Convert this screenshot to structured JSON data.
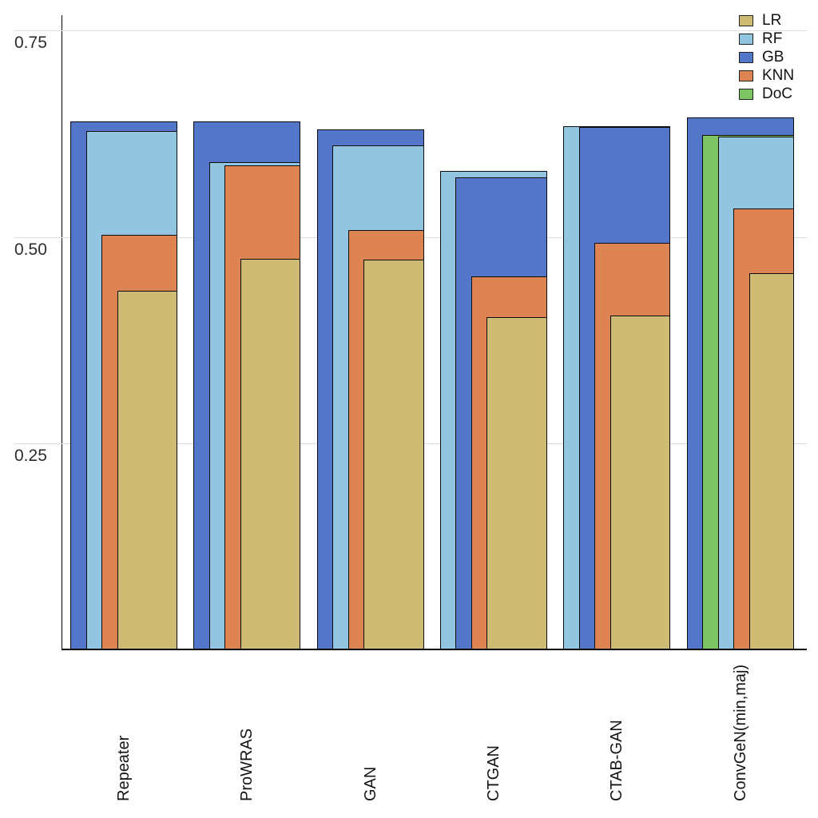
{
  "chart_data": {
    "type": "bar",
    "variant": "nested-overlay-bars",
    "title": "",
    "xlabel": "",
    "ylabel": "",
    "categories": [
      "Repeater",
      "ProWRAS",
      "GAN",
      "CTGAN",
      "CTAB-GAN",
      "ConvGeN(min,maj)"
    ],
    "series": [
      {
        "name": "LR",
        "color": "#CEBB74",
        "values": [
          0.435,
          0.473,
          0.472,
          0.403,
          0.405,
          0.456
        ]
      },
      {
        "name": "RF",
        "color": "#92C5E0",
        "values": [
          0.628,
          0.59,
          0.611,
          0.58,
          0.634,
          0.621
        ]
      },
      {
        "name": "GB",
        "color": "#5376C8",
        "values": [
          0.64,
          0.64,
          0.63,
          0.572,
          0.633,
          0.644
        ]
      },
      {
        "name": "KNN",
        "color": "#DE8452",
        "values": [
          0.502,
          0.586,
          0.508,
          0.452,
          0.493,
          0.534
        ]
      },
      {
        "name": "DoC",
        "color": "#7CC464",
        "values": [
          null,
          null,
          null,
          null,
          null,
          0.623
        ]
      }
    ],
    "y_axis": {
      "tick_values": [
        0.25,
        0.5,
        0.75
      ],
      "tick_labels": [
        "0.25",
        "0.50",
        "0.75"
      ],
      "range": [
        0,
        0.78
      ]
    },
    "grid": "horizontal",
    "legend_position": "top-right",
    "notes": "Within each category, bars overlap: sorted by value descending, widest in back, all right-aligned; bars start at 0."
  }
}
